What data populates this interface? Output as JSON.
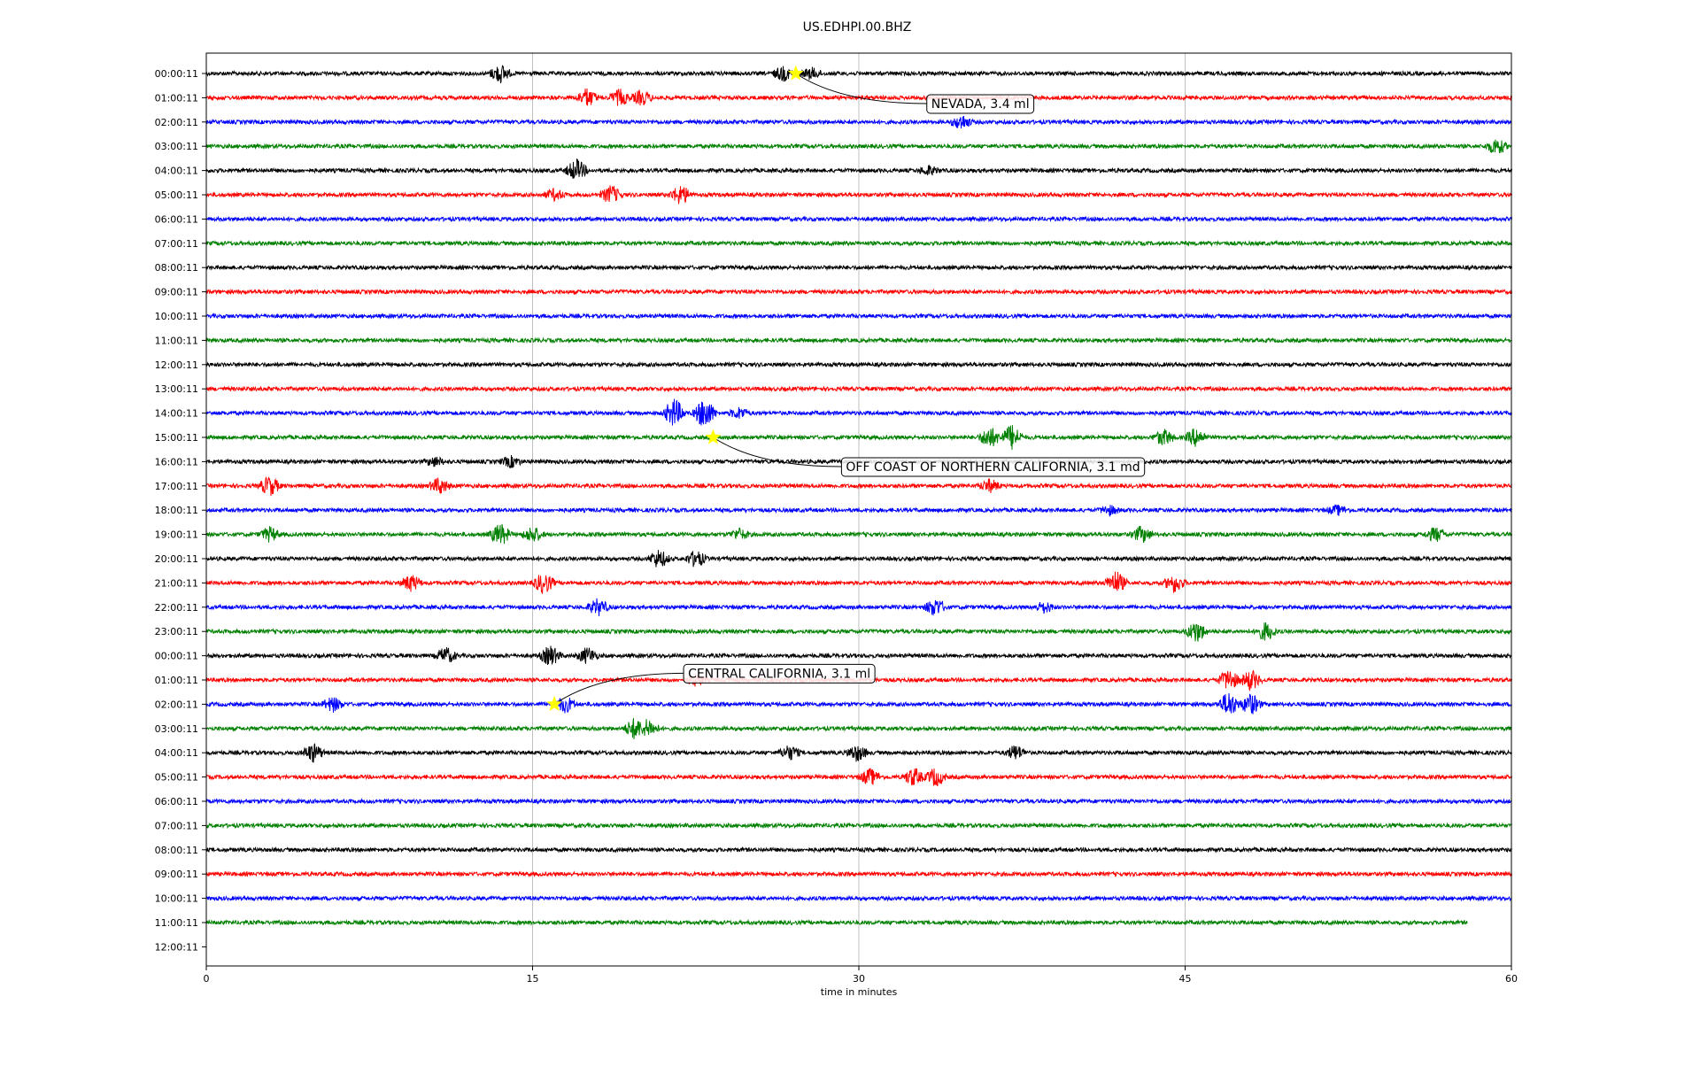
{
  "chart_data": {
    "type": "line",
    "title": "US.EDHPI.00.BHZ",
    "xlabel": "time in minutes",
    "xlim": [
      0,
      60
    ],
    "xticks": [
      0,
      15,
      30,
      45,
      60
    ],
    "grid": "vertical",
    "row_labels": [
      "00:00:11",
      "01:00:11",
      "02:00:11",
      "03:00:11",
      "04:00:11",
      "05:00:11",
      "06:00:11",
      "07:00:11",
      "08:00:11",
      "09:00:11",
      "10:00:11",
      "11:00:11",
      "12:00:11",
      "13:00:11",
      "14:00:11",
      "15:00:11",
      "16:00:11",
      "17:00:11",
      "18:00:11",
      "19:00:11",
      "20:00:11",
      "21:00:11",
      "22:00:11",
      "23:00:11",
      "00:00:11",
      "01:00:11",
      "02:00:11",
      "03:00:11",
      "04:00:11",
      "05:00:11",
      "06:00:11",
      "07:00:11",
      "08:00:11",
      "09:00:11",
      "10:00:11",
      "11:00:11",
      "12:00:11"
    ],
    "trace_colors": [
      "#000000",
      "#ff0000",
      "#0000ff",
      "#008000"
    ],
    "trace_end_minutes": [
      60,
      60,
      60,
      60,
      60,
      60,
      60,
      60,
      60,
      60,
      60,
      60,
      60,
      60,
      60,
      60,
      60,
      60,
      60,
      60,
      60,
      60,
      60,
      60,
      60,
      60,
      60,
      60,
      60,
      60,
      60,
      60,
      60,
      60,
      60,
      58,
      0
    ],
    "bursts": [
      {
        "row": 0,
        "min": 13.5,
        "amp": 10
      },
      {
        "row": 0,
        "min": 26.5,
        "amp": 8
      },
      {
        "row": 0,
        "min": 27.8,
        "amp": 6
      },
      {
        "row": 1,
        "min": 17.5,
        "amp": 10
      },
      {
        "row": 1,
        "min": 19.0,
        "amp": 9
      },
      {
        "row": 1,
        "min": 20.0,
        "amp": 8
      },
      {
        "row": 2,
        "min": 34.7,
        "amp": 8
      },
      {
        "row": 3,
        "min": 59.3,
        "amp": 9
      },
      {
        "row": 4,
        "min": 17.0,
        "amp": 12
      },
      {
        "row": 4,
        "min": 33.2,
        "amp": 5
      },
      {
        "row": 5,
        "min": 16.0,
        "amp": 6
      },
      {
        "row": 5,
        "min": 18.6,
        "amp": 10
      },
      {
        "row": 5,
        "min": 21.8,
        "amp": 11
      },
      {
        "row": 14,
        "min": 21.5,
        "amp": 16
      },
      {
        "row": 14,
        "min": 22.9,
        "amp": 18
      },
      {
        "row": 14,
        "min": 24.5,
        "amp": 6
      },
      {
        "row": 15,
        "min": 36.0,
        "amp": 12
      },
      {
        "row": 15,
        "min": 37.0,
        "amp": 14
      },
      {
        "row": 15,
        "min": 44.0,
        "amp": 9
      },
      {
        "row": 15,
        "min": 45.5,
        "amp": 10
      },
      {
        "row": 16,
        "min": 10.5,
        "amp": 5
      },
      {
        "row": 16,
        "min": 14.0,
        "amp": 6
      },
      {
        "row": 17,
        "min": 2.9,
        "amp": 11
      },
      {
        "row": 17,
        "min": 10.7,
        "amp": 9
      },
      {
        "row": 17,
        "min": 36.0,
        "amp": 7
      },
      {
        "row": 18,
        "min": 41.5,
        "amp": 5
      },
      {
        "row": 18,
        "min": 52.0,
        "amp": 5
      },
      {
        "row": 19,
        "min": 2.9,
        "amp": 8
      },
      {
        "row": 19,
        "min": 13.5,
        "amp": 12
      },
      {
        "row": 19,
        "min": 15.0,
        "amp": 9
      },
      {
        "row": 19,
        "min": 24.5,
        "amp": 6
      },
      {
        "row": 19,
        "min": 43.0,
        "amp": 9
      },
      {
        "row": 19,
        "min": 56.5,
        "amp": 8
      },
      {
        "row": 20,
        "min": 20.8,
        "amp": 10
      },
      {
        "row": 20,
        "min": 22.5,
        "amp": 9
      },
      {
        "row": 21,
        "min": 9.4,
        "amp": 9
      },
      {
        "row": 21,
        "min": 15.5,
        "amp": 12
      },
      {
        "row": 21,
        "min": 41.8,
        "amp": 13
      },
      {
        "row": 21,
        "min": 44.5,
        "amp": 10
      },
      {
        "row": 22,
        "min": 18.0,
        "amp": 9
      },
      {
        "row": 22,
        "min": 33.5,
        "amp": 10
      },
      {
        "row": 22,
        "min": 38.5,
        "amp": 6
      },
      {
        "row": 23,
        "min": 45.5,
        "amp": 12
      },
      {
        "row": 23,
        "min": 48.7,
        "amp": 10
      },
      {
        "row": 24,
        "min": 15.8,
        "amp": 11
      },
      {
        "row": 24,
        "min": 17.5,
        "amp": 9
      },
      {
        "row": 24,
        "min": 11.0,
        "amp": 9
      },
      {
        "row": 25,
        "min": 22.5,
        "amp": 6
      },
      {
        "row": 25,
        "min": 47.0,
        "amp": 12
      },
      {
        "row": 25,
        "min": 48.0,
        "amp": 11
      },
      {
        "row": 26,
        "min": 5.8,
        "amp": 8
      },
      {
        "row": 26,
        "min": 16.5,
        "amp": 9
      },
      {
        "row": 26,
        "min": 47.0,
        "amp": 14
      },
      {
        "row": 26,
        "min": 48.0,
        "amp": 12
      },
      {
        "row": 27,
        "min": 19.7,
        "amp": 12
      },
      {
        "row": 27,
        "min": 20.3,
        "amp": 10
      },
      {
        "row": 28,
        "min": 4.9,
        "amp": 10
      },
      {
        "row": 28,
        "min": 26.8,
        "amp": 8
      },
      {
        "row": 28,
        "min": 29.9,
        "amp": 9
      },
      {
        "row": 28,
        "min": 37.2,
        "amp": 8
      },
      {
        "row": 29,
        "min": 30.5,
        "amp": 9
      },
      {
        "row": 29,
        "min": 32.5,
        "amp": 10
      },
      {
        "row": 29,
        "min": 33.5,
        "amp": 10
      }
    ],
    "events": [
      {
        "label": "NEVADA, 3.4 ml",
        "row": 0,
        "minute": 27.1
      },
      {
        "label": "OFF COAST OF NORTHERN CALIFORNIA, 3.1 md",
        "row": 15,
        "minute": 23.3
      },
      {
        "label": "CENTRAL CALIFORNIA, 3.1 ml",
        "row": 26,
        "minute": 16.0
      }
    ],
    "event_marker_color": "#ffff00",
    "grid_color": "#b0b0b0"
  }
}
